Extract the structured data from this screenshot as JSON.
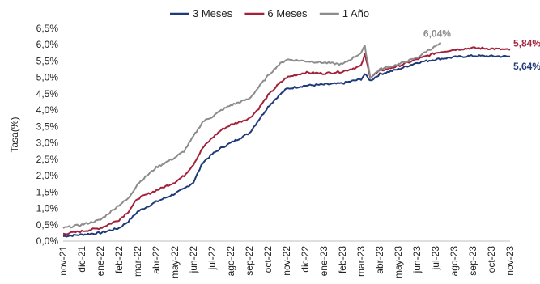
{
  "chart_data": {
    "type": "line",
    "ylabel": "Tasa(%)",
    "ylim": [
      0,
      6.5
    ],
    "y_ticks": [
      "0,0%",
      "0,5%",
      "1,0%",
      "1,5%",
      "2,0%",
      "2,5%",
      "3,0%",
      "3,5%",
      "4,0%",
      "4,5%",
      "5,0%",
      "5,5%",
      "6,0%",
      "6,5%"
    ],
    "x_ticks": [
      "nov-21",
      "dic-21",
      "ene-22",
      "feb-22",
      "mar-22",
      "abr-22",
      "may-22",
      "jun-22",
      "jul-22",
      "ago-22",
      "sep-22",
      "oct-22",
      "nov-22",
      "dic-22",
      "ene-23",
      "feb-23",
      "mar-23",
      "abr-23",
      "may-23",
      "jun-23",
      "jul-23",
      "ago-23",
      "sep-23",
      "oct-23",
      "nov-23"
    ],
    "legend_position": "top",
    "series": [
      {
        "name": "3 Meses",
        "color": "#1f3a7a",
        "end_label": "5,64%",
        "points": [
          [
            0,
            0.15
          ],
          [
            1,
            0.2
          ],
          [
            2,
            0.25
          ],
          [
            3,
            0.4
          ],
          [
            3.5,
            0.6
          ],
          [
            4,
            0.9
          ],
          [
            5,
            1.2
          ],
          [
            6,
            1.45
          ],
          [
            6.5,
            1.6
          ],
          [
            7,
            1.8
          ],
          [
            7.5,
            2.4
          ],
          [
            8,
            2.65
          ],
          [
            8.5,
            2.85
          ],
          [
            9,
            3.0
          ],
          [
            10,
            3.3
          ],
          [
            10.5,
            3.7
          ],
          [
            11,
            4.1
          ],
          [
            11.5,
            4.4
          ],
          [
            12,
            4.65
          ],
          [
            13,
            4.75
          ],
          [
            14,
            4.78
          ],
          [
            15,
            4.82
          ],
          [
            16,
            4.95
          ],
          [
            16.2,
            5.1
          ],
          [
            16.5,
            4.9
          ],
          [
            17,
            5.1
          ],
          [
            18,
            5.25
          ],
          [
            19,
            5.45
          ],
          [
            20,
            5.55
          ],
          [
            21,
            5.62
          ],
          [
            22,
            5.66
          ],
          [
            23,
            5.65
          ],
          [
            24,
            5.64
          ]
        ]
      },
      {
        "name": "6 Meses",
        "color": "#a3213a",
        "end_label": "5,84%",
        "points": [
          [
            0,
            0.22
          ],
          [
            1,
            0.3
          ],
          [
            2,
            0.4
          ],
          [
            3,
            0.65
          ],
          [
            3.5,
            0.9
          ],
          [
            4,
            1.3
          ],
          [
            5,
            1.55
          ],
          [
            6,
            1.8
          ],
          [
            6.5,
            2.0
          ],
          [
            7,
            2.35
          ],
          [
            7.5,
            2.85
          ],
          [
            8,
            3.15
          ],
          [
            8.5,
            3.4
          ],
          [
            9,
            3.55
          ],
          [
            10,
            3.75
          ],
          [
            10.5,
            4.05
          ],
          [
            11,
            4.45
          ],
          [
            11.5,
            4.75
          ],
          [
            12,
            5.0
          ],
          [
            13,
            5.15
          ],
          [
            14,
            5.12
          ],
          [
            15,
            5.18
          ],
          [
            16,
            5.35
          ],
          [
            16.2,
            5.7
          ],
          [
            16.5,
            5.0
          ],
          [
            17,
            5.2
          ],
          [
            18,
            5.35
          ],
          [
            19,
            5.55
          ],
          [
            20,
            5.75
          ],
          [
            21,
            5.85
          ],
          [
            22,
            5.9
          ],
          [
            23,
            5.88
          ],
          [
            24,
            5.84
          ]
        ]
      },
      {
        "name": "1 Año",
        "color": "#8c8c8c",
        "end_label": "6,04%",
        "points": [
          [
            0,
            0.4
          ],
          [
            1,
            0.5
          ],
          [
            2,
            0.65
          ],
          [
            3,
            1.1
          ],
          [
            3.5,
            1.3
          ],
          [
            4,
            1.75
          ],
          [
            5,
            2.25
          ],
          [
            6,
            2.55
          ],
          [
            6.5,
            2.75
          ],
          [
            7,
            3.2
          ],
          [
            7.5,
            3.65
          ],
          [
            8,
            3.8
          ],
          [
            8.5,
            4.0
          ],
          [
            9,
            4.15
          ],
          [
            10,
            4.35
          ],
          [
            10.5,
            4.7
          ],
          [
            11,
            5.05
          ],
          [
            11.5,
            5.35
          ],
          [
            12,
            5.55
          ],
          [
            13,
            5.5
          ],
          [
            14,
            5.45
          ],
          [
            15,
            5.4
          ],
          [
            16,
            5.75
          ],
          [
            16.2,
            5.95
          ],
          [
            16.5,
            5.0
          ],
          [
            17,
            5.25
          ],
          [
            18,
            5.4
          ],
          [
            19,
            5.6
          ],
          [
            19.5,
            5.8
          ],
          [
            20,
            5.95
          ],
          [
            20.3,
            6.04
          ]
        ]
      }
    ]
  }
}
